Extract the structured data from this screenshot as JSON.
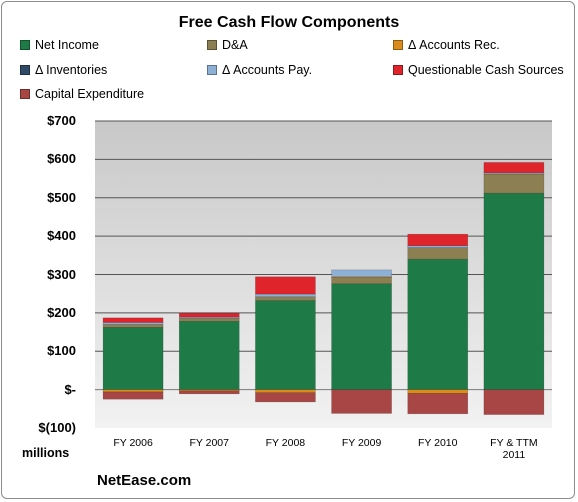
{
  "chart_data": {
    "type": "bar",
    "stacked": true,
    "title": "Free Cash Flow Components",
    "units_label": "millions",
    "footer": "NetEase.com",
    "categories": [
      "FY 2006",
      "FY 2007",
      "FY 2008",
      "FY 2009",
      "FY 2010",
      "FY & TTM 2011"
    ],
    "ylim": [
      -100,
      700
    ],
    "yticks": [
      {
        "value": 700,
        "label": "$700"
      },
      {
        "value": 600,
        "label": "$600"
      },
      {
        "value": 500,
        "label": "$500"
      },
      {
        "value": 400,
        "label": "$400"
      },
      {
        "value": 300,
        "label": "$300"
      },
      {
        "value": 200,
        "label": "$200"
      },
      {
        "value": 100,
        "label": "$100"
      },
      {
        "value": 0,
        "label": "$-"
      },
      {
        "value": -100,
        "label": "$(100)"
      }
    ],
    "grid": true,
    "legend_position": "top",
    "series": [
      {
        "name": "Net Income",
        "color": "#1e7b47",
        "values": [
          162,
          178,
          232,
          276,
          340,
          512
        ]
      },
      {
        "name": "D&A",
        "color": "#8c7f52",
        "values": [
          8,
          8,
          10,
          17,
          30,
          50
        ]
      },
      {
        "name": "Δ Accounts Rec.",
        "color": "#d98c1c",
        "values": [
          -6,
          -3,
          -8,
          1,
          -10,
          0
        ]
      },
      {
        "name": "Δ Inventories",
        "color": "#2e4a66",
        "values": [
          0,
          0,
          0,
          0,
          0,
          0
        ]
      },
      {
        "name": "Δ Accounts Pay.",
        "color": "#8fb0d6",
        "values": [
          5,
          3,
          7,
          18,
          5,
          3
        ]
      },
      {
        "name": "Questionable Cash Sources",
        "color": "#e0242b",
        "values": [
          12,
          10,
          45,
          0,
          30,
          27
        ]
      },
      {
        "name": "Capital Expenditure",
        "color": "#a84545",
        "values": [
          -19,
          -8,
          -24,
          -62,
          -53,
          -65
        ]
      }
    ]
  }
}
